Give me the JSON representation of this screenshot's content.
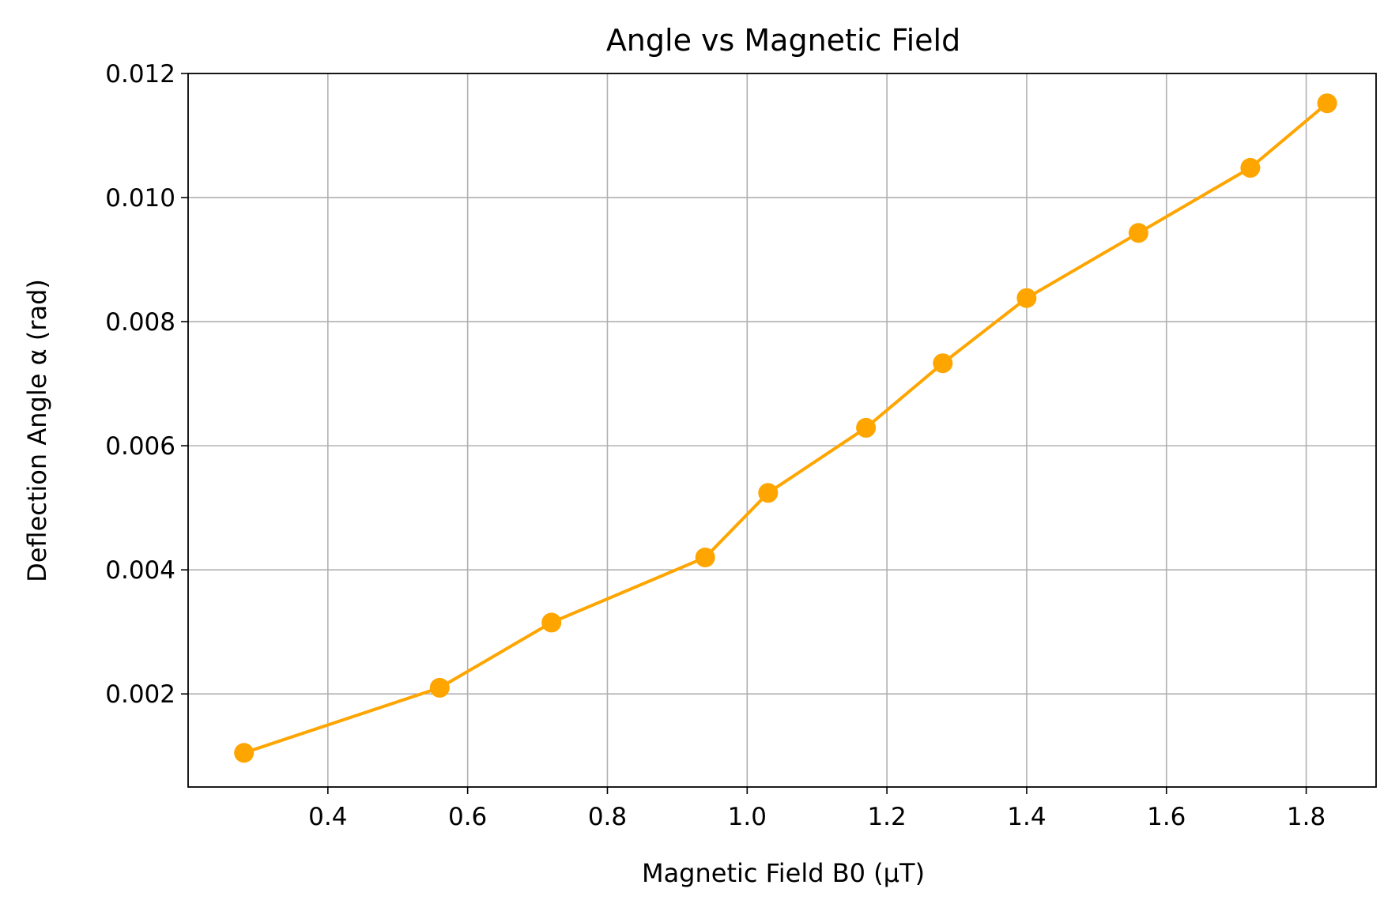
{
  "chart_data": {
    "type": "line",
    "title": "Angle vs Magnetic Field",
    "xlabel": "Magnetic Field B0 (μT)",
    "ylabel": "Deflection Angle α (rad)",
    "xlim": [
      0.2,
      1.9
    ],
    "ylim": [
      0.0005,
      0.012
    ],
    "x_ticks": [
      0.4,
      0.6,
      0.8,
      1.0,
      1.2,
      1.4,
      1.6,
      1.8
    ],
    "x_tick_labels": [
      "0.4",
      "0.6",
      "0.8",
      "1.0",
      "1.2",
      "1.4",
      "1.6",
      "1.8"
    ],
    "y_ticks": [
      0.002,
      0.004,
      0.006,
      0.008,
      0.01,
      0.012
    ],
    "y_tick_labels": [
      "0.002",
      "0.004",
      "0.006",
      "0.008",
      "0.010",
      "0.012"
    ],
    "grid": true,
    "series": [
      {
        "color": "#ffa500",
        "marker": "circle",
        "x": [
          0.28,
          0.56,
          0.72,
          0.94,
          1.03,
          1.17,
          1.28,
          1.4,
          1.56,
          1.72,
          1.83
        ],
        "y": [
          0.00105,
          0.0021,
          0.00315,
          0.0042,
          0.00524,
          0.00629,
          0.00733,
          0.00838,
          0.00943,
          0.01048,
          0.01152
        ]
      }
    ]
  }
}
